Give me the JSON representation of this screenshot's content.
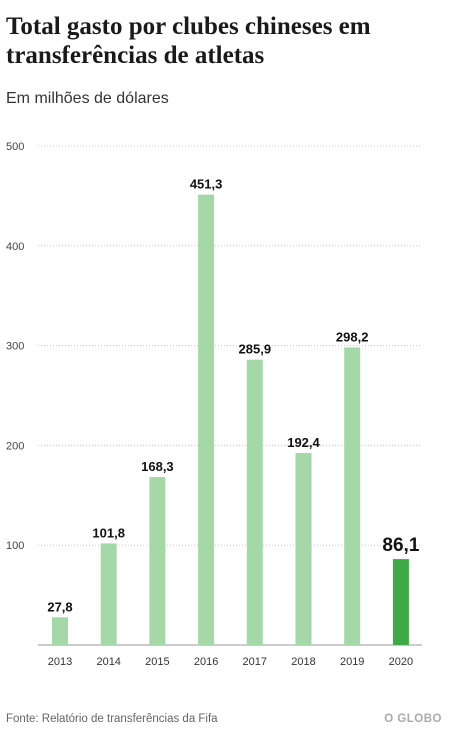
{
  "header": {
    "title": "Total gasto por clubes chineses em transferências de atletas",
    "subtitle": "Em milhões de dólares"
  },
  "footer": {
    "source": "Fonte: Relatório de transferências da Fifa",
    "brand": "O GLOBO"
  },
  "colors": {
    "bar": "#a5d8a8",
    "bar_highlight": "#3eaa45",
    "grid": "#c8c8c8"
  },
  "chart_data": {
    "type": "bar",
    "categories": [
      "2013",
      "2014",
      "2015",
      "2016",
      "2017",
      "2018",
      "2019",
      "2020"
    ],
    "values": [
      27.8,
      101.8,
      168.3,
      451.3,
      285.9,
      192.4,
      298.2,
      86.1
    ],
    "value_labels": [
      "27,8",
      "101,8",
      "168,3",
      "451,3",
      "285,9",
      "192,4",
      "298,2",
      "86,1"
    ],
    "highlight_index": 7,
    "ylim": [
      0,
      500
    ],
    "yticks": [
      100,
      200,
      300,
      400,
      500
    ],
    "title": "Total gasto por clubes chineses em transferências de atletas",
    "ylabel": "Em milhões de dólares",
    "xlabel": "",
    "grid": true
  }
}
